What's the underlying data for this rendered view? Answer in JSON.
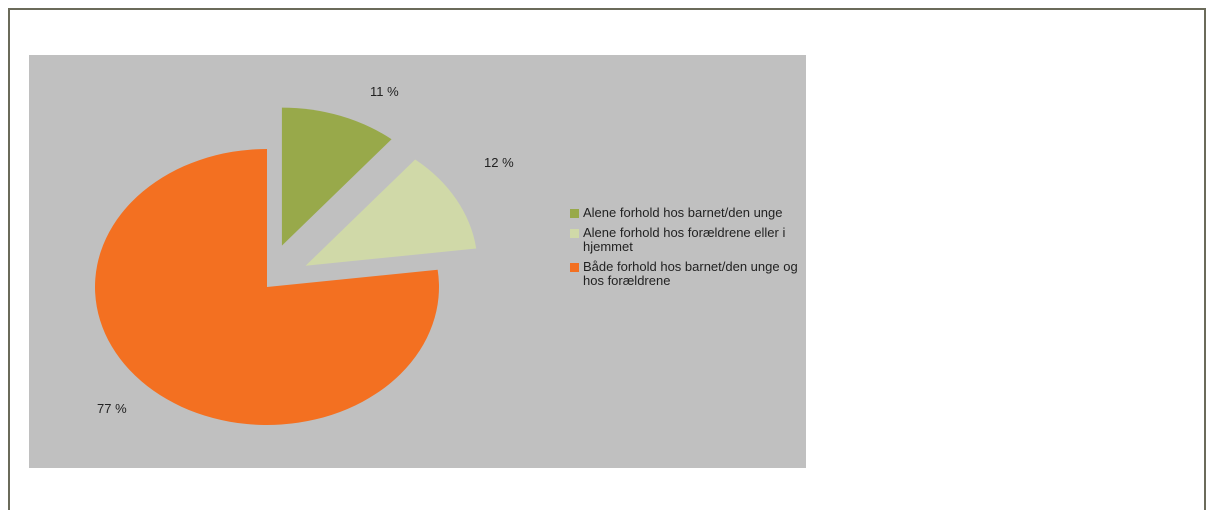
{
  "chart_data": {
    "type": "pie",
    "title": "",
    "slices": [
      {
        "label": "Alene forhold hos barnet/den unge",
        "value": 11,
        "value_label": "11 %",
        "color": "#98a94a",
        "exploded": true
      },
      {
        "label": "Alene forhold hos forældrene eller i hjemmet",
        "value": 12,
        "value_label": "12 %",
        "color": "#d0d9a8",
        "exploded": true
      },
      {
        "label": "Både forhold hos barnet/den unge og hos forældrene",
        "value": 77,
        "value_label": "77 %",
        "color": "#f37021",
        "exploded": false
      }
    ],
    "legend_position": "right",
    "plot_background": "#c0c0c0"
  }
}
